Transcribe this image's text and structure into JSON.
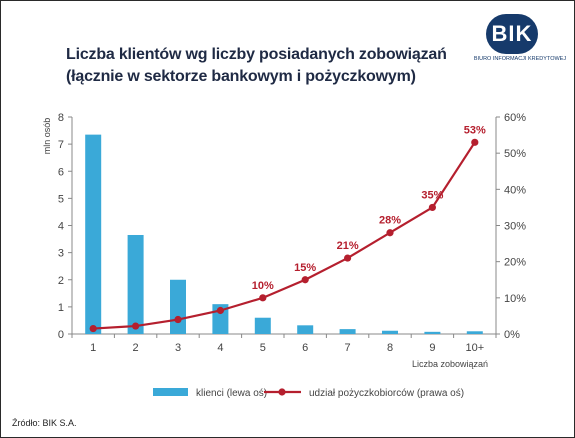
{
  "logo": {
    "text": "BIK",
    "subtitle": "BIURO INFORMACJI KREDYTOWEJ"
  },
  "source": "Źródło: BIK S.A.",
  "colors": {
    "bars": "#3aa9d8",
    "line": "#b51f2e",
    "title": "#1f2a44",
    "logo": "#163a6b"
  },
  "chart_data": {
    "type": "bar",
    "title": "Liczba klientów wg liczby posiadanych zobowiązań",
    "subtitle": "(łącznie w sektorze bankowym i pożyczkowym)",
    "xlabel": "Liczba zobowiązań",
    "ylabel": "mln osób",
    "categories": [
      "1",
      "2",
      "3",
      "4",
      "5",
      "6",
      "7",
      "8",
      "9",
      "10+"
    ],
    "ylim": [
      0,
      8
    ],
    "yticks": [
      "0",
      "1",
      "2",
      "3",
      "4",
      "5",
      "6",
      "7",
      "8"
    ],
    "y2lim": [
      0,
      60
    ],
    "y2ticks": [
      "0%",
      "10%",
      "20%",
      "30%",
      "40%",
      "50%",
      "60%"
    ],
    "series": [
      {
        "name": "klienci (lewa oś)",
        "type": "bar",
        "axis": "left",
        "values": [
          7.35,
          3.65,
          2.0,
          1.1,
          0.6,
          0.32,
          0.18,
          0.12,
          0.08,
          0.1
        ]
      },
      {
        "name": "udział pożyczkobiorców (prawa oś)",
        "type": "line",
        "axis": "right",
        "values": [
          1.5,
          2.2,
          4.0,
          6.5,
          10,
          15,
          21,
          28,
          35,
          53
        ],
        "labels": [
          "",
          "",
          "",
          "",
          "10%",
          "15%",
          "21%",
          "28%",
          "35%",
          "53%"
        ]
      }
    ],
    "grid": false,
    "legend": "bottom"
  }
}
